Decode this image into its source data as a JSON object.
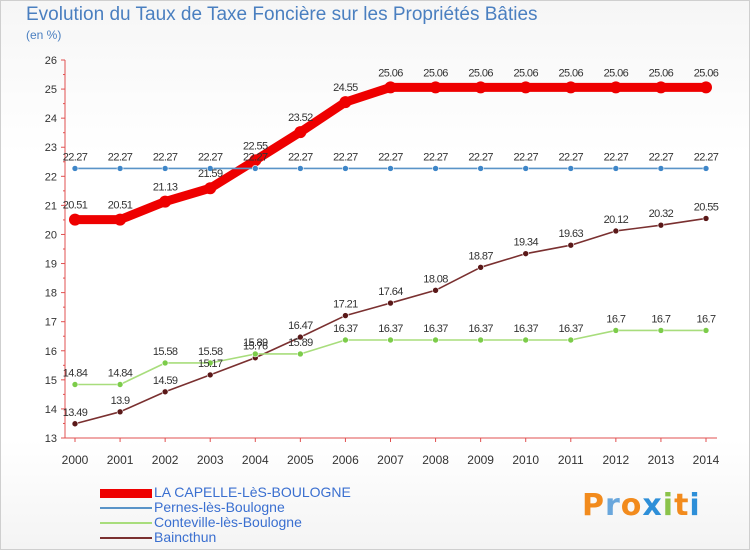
{
  "title": "Evolution du Taux de Taxe Foncière sur les Propriétés Bâties",
  "unit_label": "(en %)",
  "brand": {
    "text": "Proxiti",
    "colors": [
      "#f28b1d",
      "#6aa7dc",
      "#f28b1d",
      "#2e8fd8",
      "#8bc34a",
      "#f28b1d",
      "#2e8fd8"
    ]
  },
  "chart_data": {
    "type": "line",
    "title": "Evolution du Taux de Taxe Foncière sur les Propriétés Bâties",
    "ylabel": "(en %)",
    "xlabel": "",
    "ylim": [
      13,
      26
    ],
    "yticks": [
      "13",
      "14",
      "15",
      "16",
      "17",
      "18",
      "19",
      "20",
      "21",
      "22",
      "23",
      "24",
      "25",
      "26"
    ],
    "categories": [
      "2000",
      "2001",
      "2002",
      "2003",
      "2004",
      "2005",
      "2006",
      "2007",
      "2008",
      "2009",
      "2010",
      "2011",
      "2012",
      "2013",
      "2014"
    ],
    "grid": false,
    "series": [
      {
        "name": "LA CAPELLE-LèS-BOULOGNE",
        "color": "#ee0000",
        "marker": "#ee0000",
        "values": [
          20.51,
          20.51,
          21.13,
          21.59,
          22.55,
          23.52,
          24.55,
          25.06,
          25.06,
          25.06,
          25.06,
          25.06,
          25.06,
          25.06,
          25.06
        ],
        "labels": [
          "20.51",
          "20.51",
          "21.13",
          "21.59",
          "22.55",
          "23.52",
          "24.55",
          "25.06",
          "25.06",
          "25.06",
          "25.06",
          "25.06",
          "25.06",
          "25.06",
          "25.06"
        ],
        "thick": true
      },
      {
        "name": "Pernes-lès-Boulogne",
        "color": "#5a94c8",
        "marker": "#3e86c8",
        "values": [
          22.27,
          22.27,
          22.27,
          22.27,
          22.27,
          22.27,
          22.27,
          22.27,
          22.27,
          22.27,
          22.27,
          22.27,
          22.27,
          22.27,
          22.27
        ],
        "labels": [
          "22.27",
          "22.27",
          "22.27",
          "22.27",
          "22.27",
          "22.27",
          "22.27",
          "22.27",
          "22.27",
          "22.27",
          "22.27",
          "22.27",
          "22.27",
          "22.27",
          "22.27"
        ],
        "thick": false
      },
      {
        "name": "Conteville-lès-Boulogne",
        "color": "#a8dd7c",
        "marker": "#7ccc4a",
        "values": [
          14.84,
          14.84,
          15.58,
          15.58,
          15.89,
          15.89,
          16.37,
          16.37,
          16.37,
          16.37,
          16.37,
          16.37,
          16.7,
          16.7,
          16.7
        ],
        "labels": [
          "14.84",
          "14.84",
          "15.58",
          "15.58",
          "15.89",
          "15.89",
          "16.37",
          "16.37",
          "16.37",
          "16.37",
          "16.37",
          "16.37",
          "16.7",
          "16.7",
          "16.7"
        ],
        "thick": false
      },
      {
        "name": "Baincthun",
        "color": "#7a3030",
        "marker": "#5a1818",
        "values": [
          13.49,
          13.9,
          14.59,
          15.17,
          15.76,
          16.47,
          17.21,
          17.64,
          18.08,
          18.87,
          19.34,
          19.63,
          20.12,
          20.32,
          20.55
        ],
        "labels": [
          "13.49",
          "13.9",
          "14.59",
          "15.17",
          "15.76",
          "16.47",
          "17.21",
          "17.64",
          "18.08",
          "18.87",
          "19.34",
          "19.63",
          "20.12",
          "20.32",
          "20.55"
        ],
        "thick": false
      }
    ]
  }
}
